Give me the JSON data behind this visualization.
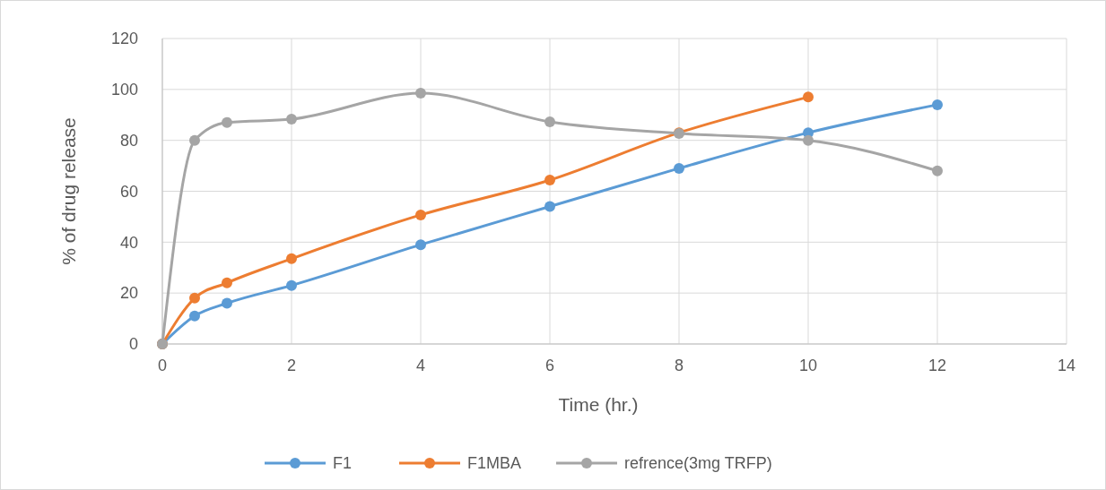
{
  "chart_data": {
    "type": "line",
    "xlabel": "Time (hr.)",
    "ylabel": "% of drug release",
    "xlim": [
      0,
      14
    ],
    "xticks": [
      0,
      2,
      4,
      6,
      8,
      10,
      12,
      14
    ],
    "ylim": [
      0,
      120
    ],
    "yticks": [
      0,
      20,
      40,
      60,
      80,
      100,
      120
    ],
    "grid": true,
    "legend": "bottom",
    "marker": "circle",
    "series": [
      {
        "name": "F1",
        "color": "#5b9bd5",
        "x": [
          0,
          0.5,
          1,
          2,
          4,
          6,
          8,
          10,
          12
        ],
        "values": [
          0,
          11,
          16,
          23,
          39,
          54,
          69,
          83,
          94
        ]
      },
      {
        "name": "F1MBA",
        "color": "#ed7d31",
        "x": [
          0,
          0.5,
          1,
          2,
          4,
          6,
          8,
          10
        ],
        "values": [
          0,
          18,
          24,
          33.5,
          50.7,
          64.4,
          83,
          97
        ]
      },
      {
        "name": "refrence(3mg TRFP)",
        "color": "#a5a5a5",
        "x": [
          0,
          0.5,
          1,
          2,
          4,
          6,
          8,
          10,
          12
        ],
        "values": [
          0,
          80,
          87,
          88.3,
          98.5,
          87.3,
          82.7,
          80,
          68
        ]
      }
    ]
  }
}
